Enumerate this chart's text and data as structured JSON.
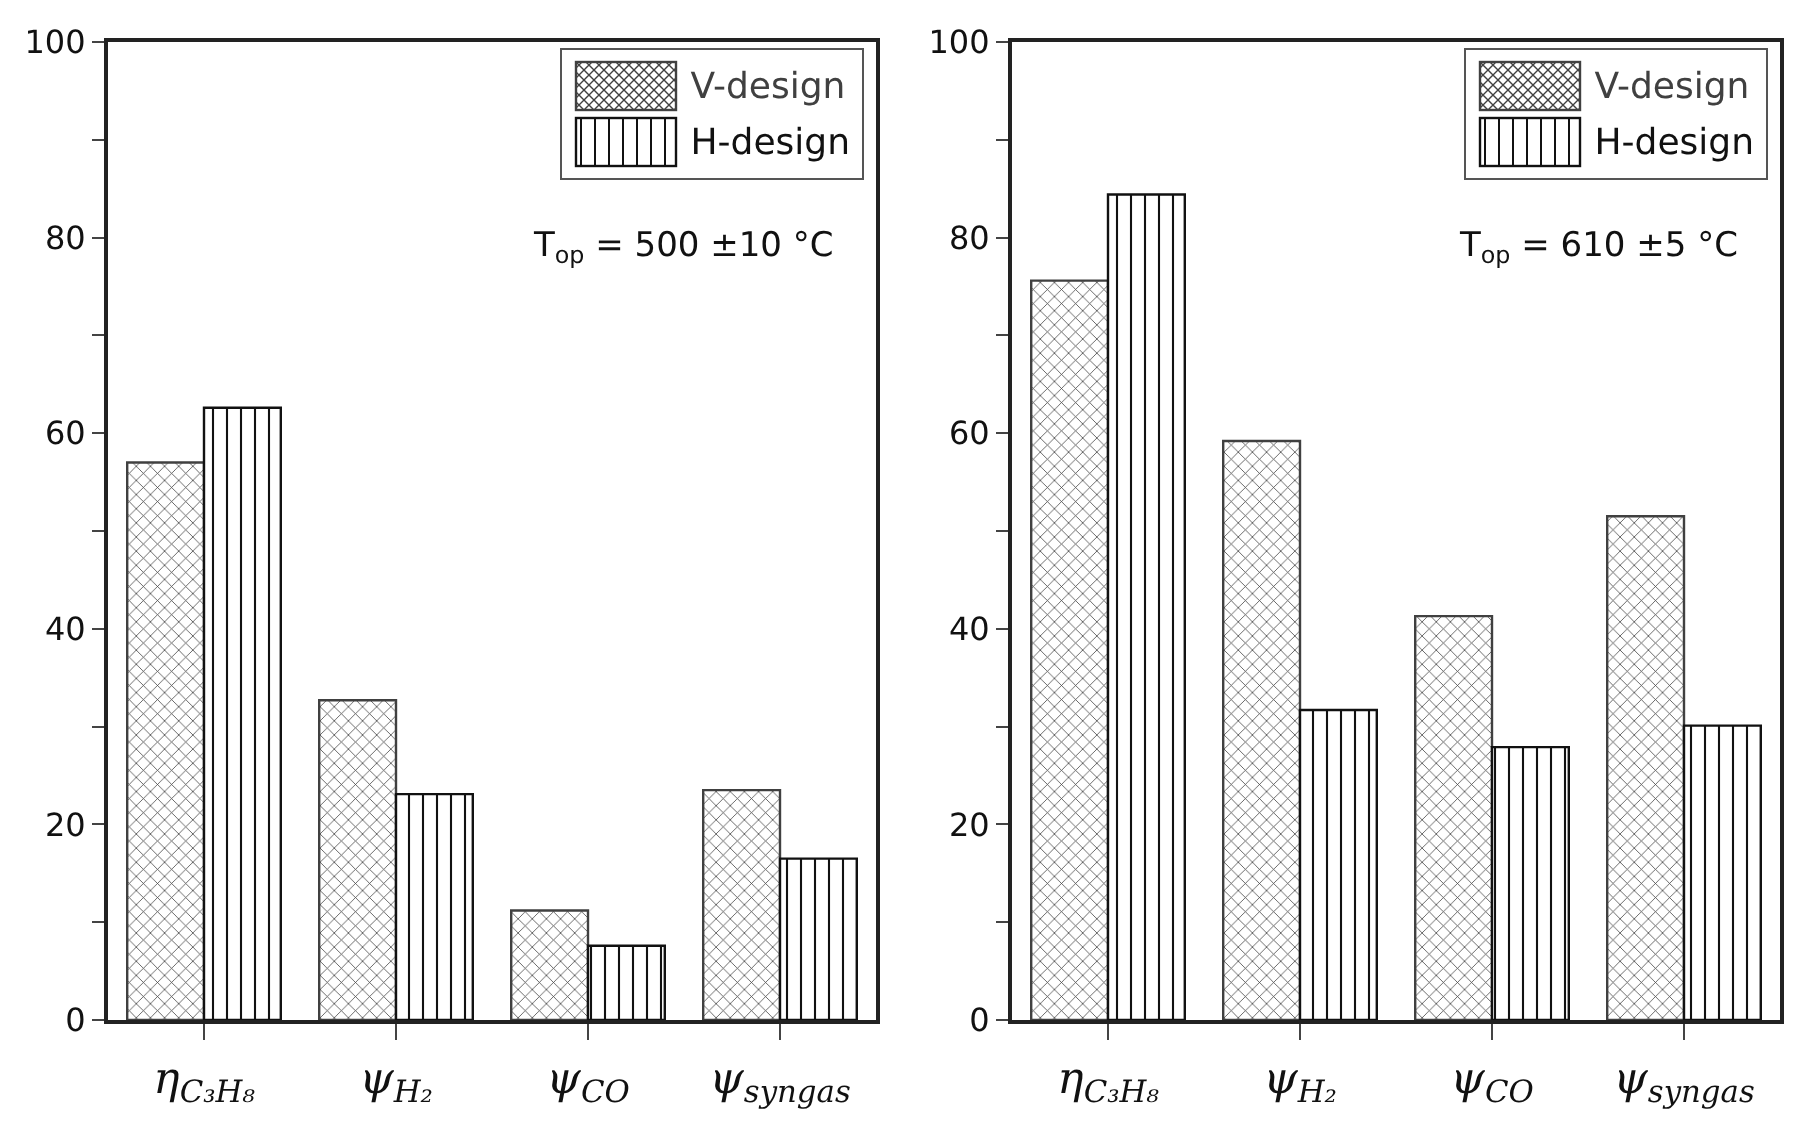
{
  "chart_data": [
    {
      "type": "bar",
      "categories": [
        "η$_{C₃H₈}$",
        "ψ$_{H₂}$",
        "ψ$_{CO}$",
        "ψ$_{syngas}$"
      ],
      "series": [
        {
          "name": "V-design",
          "color": "#404040",
          "values": [
            57,
            32.7,
            11.2,
            23.5
          ]
        },
        {
          "name": "H-design",
          "color": "#111111",
          "values": [
            62.6,
            23.1,
            7.6,
            16.5
          ]
        }
      ],
      "ylim": [
        0,
        100
      ],
      "yticks": [
        0,
        {
          "value": 10,
          "label": null
        },
        20,
        {
          "value": 30,
          "label": null
        },
        40,
        {
          "value": 50,
          "label": null
        },
        60,
        {
          "value": 70,
          "label": null
        },
        80,
        {
          "value": 90,
          "label": null
        },
        100
      ],
      "grid": false,
      "legend": "top right",
      "annotations": [
        "T$_{op}$ = 500 ±10 °C"
      ]
    },
    {
      "type": "bar",
      "categories": [
        "η$_{C₃H₈}$",
        "ψ$_{H₂}$",
        "ψ$_{CO}$",
        "ψ$_{syngas}$"
      ],
      "series": [
        {
          "name": "V-design",
          "color": "#404040",
          "values": [
            75.6,
            59.2,
            41.3,
            51.5
          ]
        },
        {
          "name": "H-design",
          "color": "#111111",
          "values": [
            84.4,
            31.7,
            27.9,
            30.1
          ]
        }
      ],
      "ylim": [
        0,
        100
      ],
      "yticks": [
        0,
        {
          "value": 10,
          "label": null
        },
        20,
        {
          "value": 30,
          "label": null
        },
        40,
        {
          "value": 50,
          "label": null
        },
        60,
        {
          "value": 70,
          "label": null
        },
        80,
        {
          "value": 90,
          "label": null
        },
        100
      ],
      "grid": false,
      "legend": "top right",
      "annotations": [
        "T$_{op}$ = 610 ±5 °C"
      ]
    }
  ]
}
